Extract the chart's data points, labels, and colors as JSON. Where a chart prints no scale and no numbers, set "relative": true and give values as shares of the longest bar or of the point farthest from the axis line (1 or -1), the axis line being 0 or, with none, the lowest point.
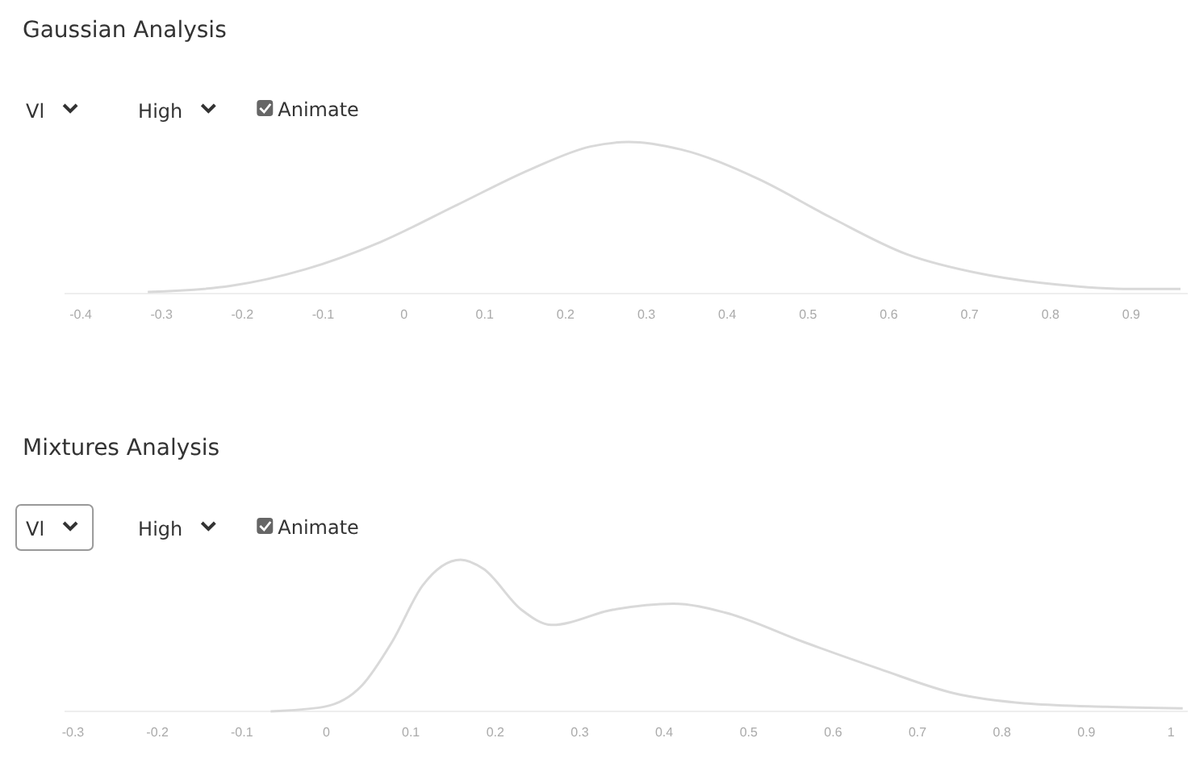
{
  "chart_data": [
    {
      "type": "line",
      "title": "Gaussian Analysis",
      "annotations": [
        "Vl",
        "High",
        "Animate"
      ],
      "relative": true,
      "xlim": [
        -0.42,
        0.97
      ],
      "xticks": [
        -0.4,
        -0.3,
        -0.2,
        -0.1,
        0.0,
        0.1,
        0.2,
        0.3,
        0.4,
        0.5,
        0.6,
        0.7,
        0.8,
        0.9
      ],
      "grid": false,
      "marker": "none",
      "series": [
        {
          "color": "#d9d9d9",
          "x": [
            -0.317,
            -0.215,
            -0.122,
            -0.029,
            0.064,
            0.157,
            0.231,
            0.278,
            0.343,
            0.437,
            0.529,
            0.622,
            0.715,
            0.808,
            0.9,
            0.961
          ],
          "values": [
            0.01,
            0.05,
            0.16,
            0.34,
            0.58,
            0.82,
            0.97,
            1,
            0.95,
            0.76,
            0.5,
            0.26,
            0.13,
            0.06,
            0.03,
            0.03
          ]
        }
      ]
    },
    {
      "type": "line",
      "title": "Mixtures Analysis",
      "annotations": [
        "Vl",
        "High",
        "Animate"
      ],
      "relative": true,
      "xlim": [
        -0.31,
        1.02
      ],
      "xticks": [
        -0.3,
        -0.2,
        -0.1,
        0.0,
        0.1,
        0.2,
        0.3,
        0.4,
        0.5,
        0.6,
        0.7,
        0.8,
        0.9,
        1.0
      ],
      "grid": false,
      "marker": "none",
      "series": [
        {
          "color": "#d9d9d9",
          "x": [
            -0.066,
            -0.003,
            0.042,
            0.078,
            0.114,
            0.159,
            0.186,
            0.231,
            0.267,
            0.339,
            0.411,
            0.473,
            0.564,
            0.655,
            0.743,
            0.834,
            0.923,
            1.014
          ],
          "values": [
            0,
            0.03,
            0.17,
            0.46,
            0.83,
            1,
            0.94,
            0.67,
            0.57,
            0.67,
            0.71,
            0.65,
            0.46,
            0.28,
            0.12,
            0.05,
            0.03,
            0.02
          ]
        }
      ]
    }
  ]
}
